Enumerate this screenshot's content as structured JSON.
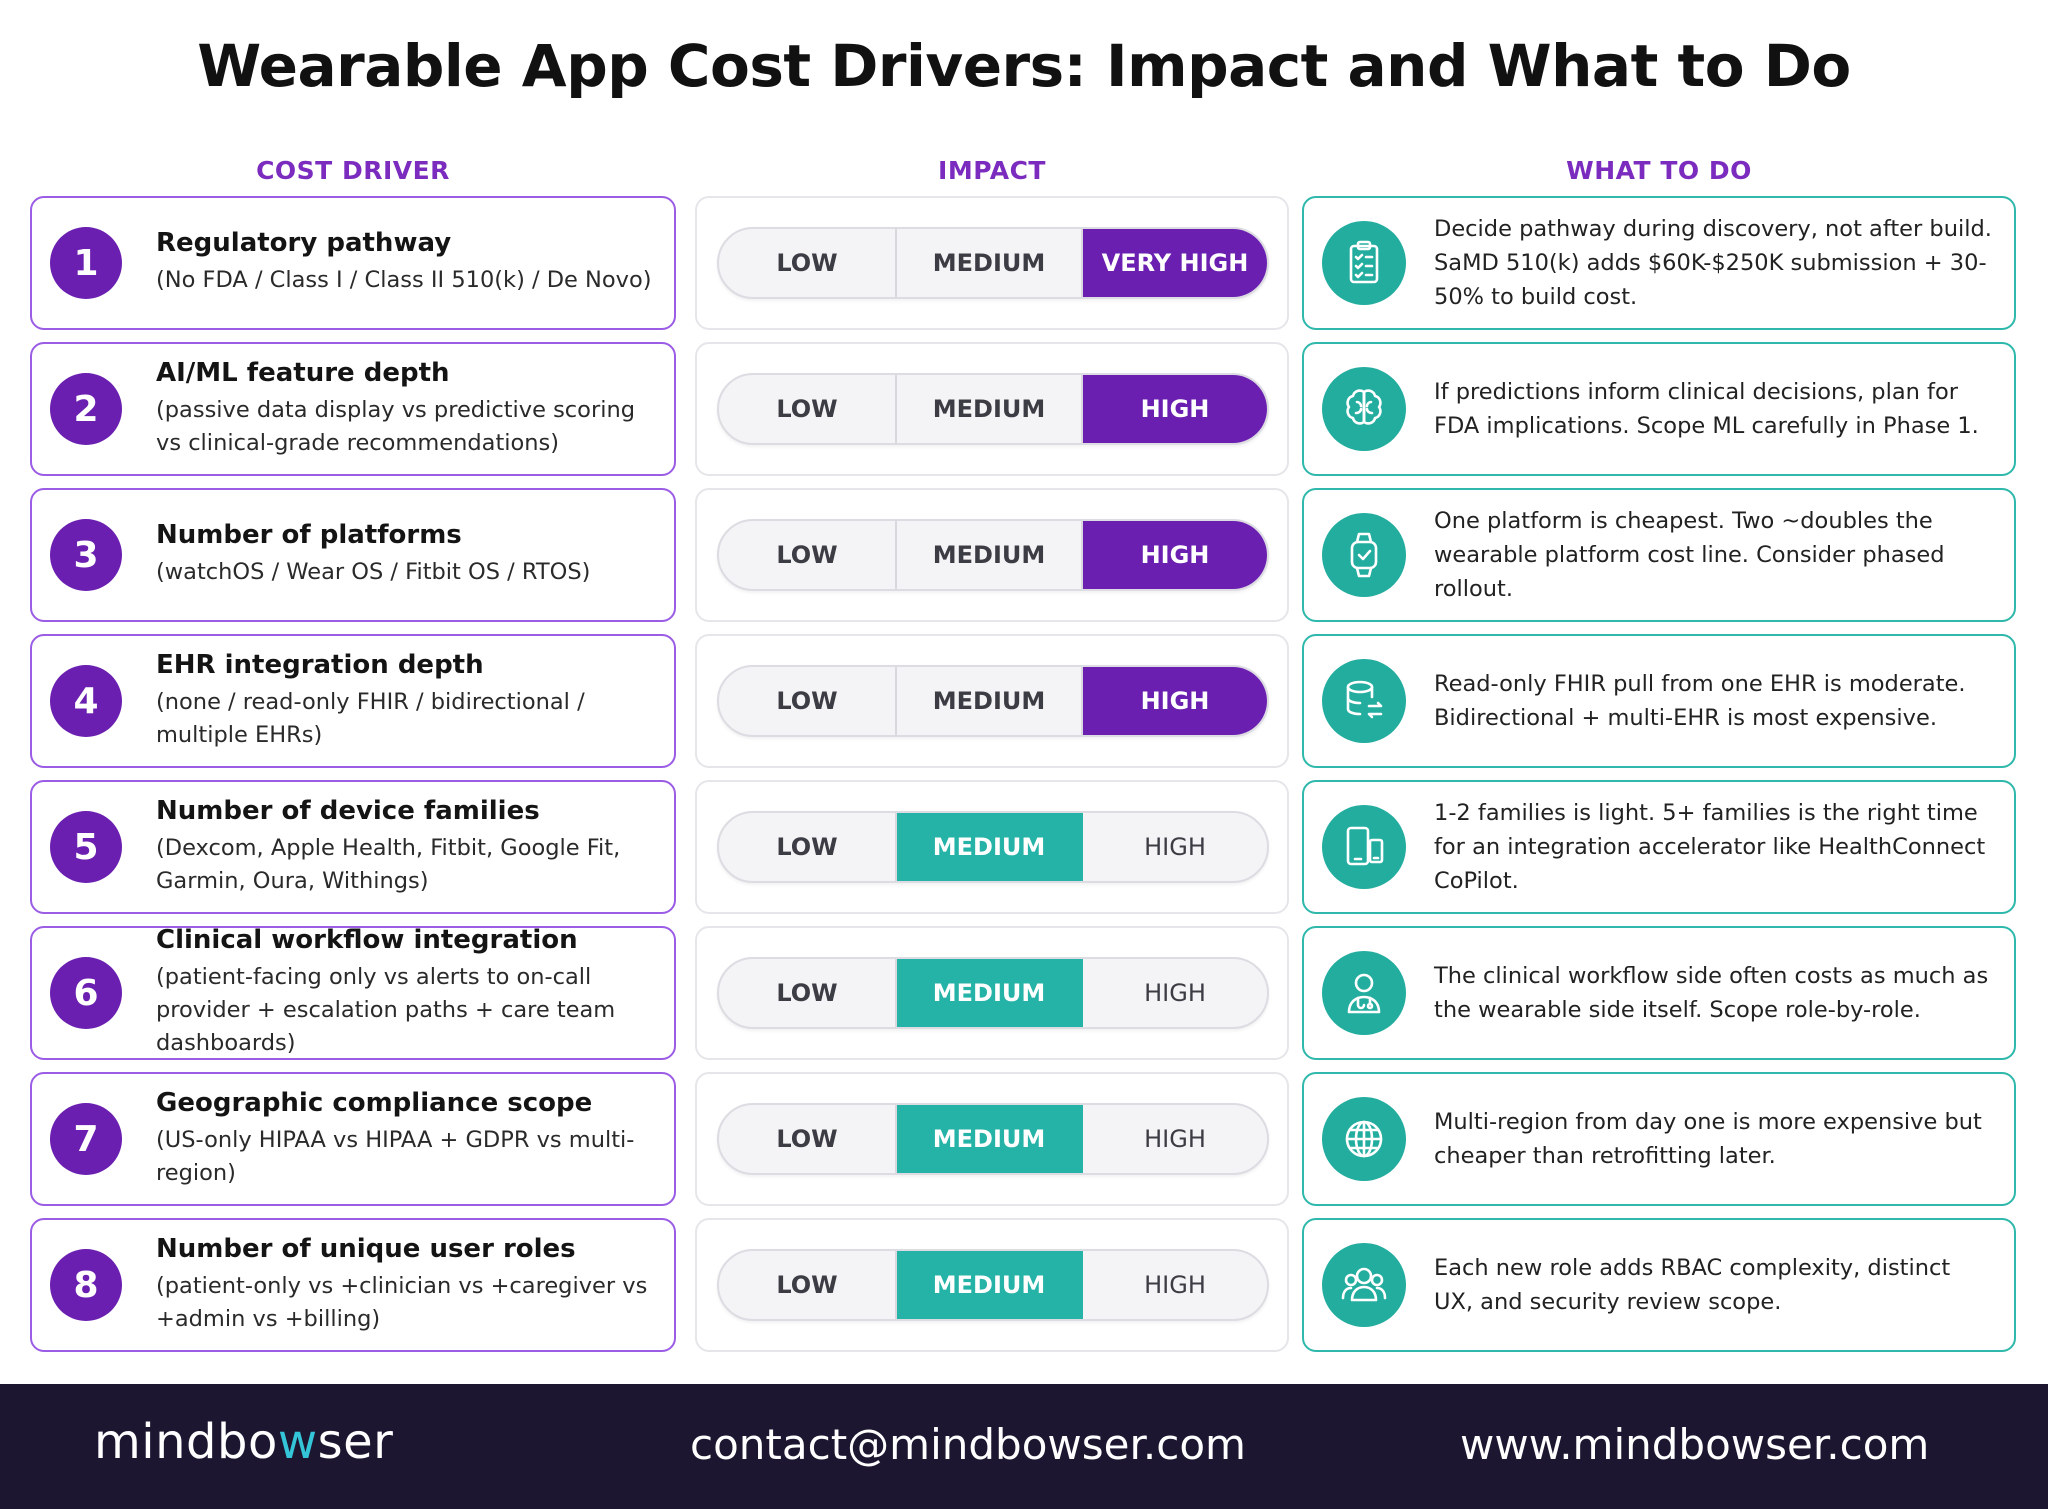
{
  "title": "Wearable App Cost Drivers: Impact and What to Do",
  "headers": {
    "driver": "COST DRIVER",
    "impact": "IMPACT",
    "todo": "WHAT TO DO"
  },
  "scale": [
    "LOW",
    "MEDIUM",
    "HIGH"
  ],
  "colors": {
    "purple": "#6a1fb0",
    "teal": "#24b3a6",
    "footer": "#1d1630"
  },
  "rows": [
    {
      "num": "1",
      "title": "Regulatory pathway",
      "subtitle": "(No FDA / Class I / Class II 510(k) / De Novo)",
      "impact": {
        "low": "LOW",
        "medium": "MEDIUM",
        "high": "VERY HIGH",
        "level": "very-high"
      },
      "icon": "clipboard-checklist-icon",
      "todo": "Decide pathway during discovery, not after build. SaMD 510(k) adds $60K-$250K submission + 30-50% to build cost."
    },
    {
      "num": "2",
      "title": "AI/ML feature depth",
      "subtitle": "(passive data display vs predictive scoring vs clinical-grade recommendations)",
      "impact": {
        "low": "LOW",
        "medium": "MEDIUM",
        "high": "HIGH",
        "level": "high"
      },
      "icon": "brain-icon",
      "todo": "If predictions inform clinical decisions, plan for FDA implications. Scope ML carefully in Phase 1."
    },
    {
      "num": "3",
      "title": "Number of platforms",
      "subtitle": "(watchOS / Wear OS / Fitbit OS / RTOS)",
      "impact": {
        "low": "LOW",
        "medium": "MEDIUM",
        "high": "HIGH",
        "level": "high"
      },
      "icon": "smartwatch-icon",
      "todo": "One platform is cheapest. Two ~doubles the wearable platform cost line. Consider phased rollout."
    },
    {
      "num": "4",
      "title": "EHR integration depth",
      "subtitle": "(none / read-only FHIR / bidirectional / multiple EHRs)",
      "impact": {
        "low": "LOW",
        "medium": "MEDIUM",
        "high": "HIGH",
        "level": "high"
      },
      "icon": "database-sync-icon",
      "todo": "Read-only FHIR pull from one EHR is moderate. Bidirectional + multi-EHR is most expensive."
    },
    {
      "num": "5",
      "title": "Number of device families",
      "subtitle": "(Dexcom, Apple Health, Fitbit, Google Fit, Garmin, Oura, Withings)",
      "impact": {
        "low": "LOW",
        "medium": "MEDIUM",
        "high": "HIGH",
        "level": "medium"
      },
      "icon": "devices-icon",
      "todo": "1-2 families is light. 5+ families is the right time for an integration accelerator like HealthConnect CoPilot."
    },
    {
      "num": "6",
      "title": "Clinical workflow integration",
      "subtitle": "(patient-facing only vs alerts to on-call provider + escalation paths + care team dashboards)",
      "impact": {
        "low": "LOW",
        "medium": "MEDIUM",
        "high": "HIGH",
        "level": "medium"
      },
      "icon": "clinician-icon",
      "todo": "The clinical workflow side often costs as much as the wearable side itself. Scope role-by-role."
    },
    {
      "num": "7",
      "title": "Geographic compliance scope",
      "subtitle": "(US-only HIPAA vs HIPAA + GDPR vs multi-region)",
      "impact": {
        "low": "LOW",
        "medium": "MEDIUM",
        "high": "HIGH",
        "level": "medium"
      },
      "icon": "globe-icon",
      "todo": "Multi-region from day one is more expensive but cheaper than retrofitting later."
    },
    {
      "num": "8",
      "title": "Number of unique user roles",
      "subtitle": "(patient-only vs +clinician vs +caregiver vs +admin vs +billing)",
      "impact": {
        "low": "LOW",
        "medium": "MEDIUM",
        "high": "HIGH",
        "level": "medium"
      },
      "icon": "user-group-icon",
      "todo": "Each new role adds RBAC complexity, distinct UX, and security review scope."
    }
  ],
  "footer": {
    "logo_a": "mindbo",
    "logo_w": "w",
    "logo_b": "ser",
    "email": "contact@mindbowser.com",
    "website": "www.mindbowser.com"
  }
}
